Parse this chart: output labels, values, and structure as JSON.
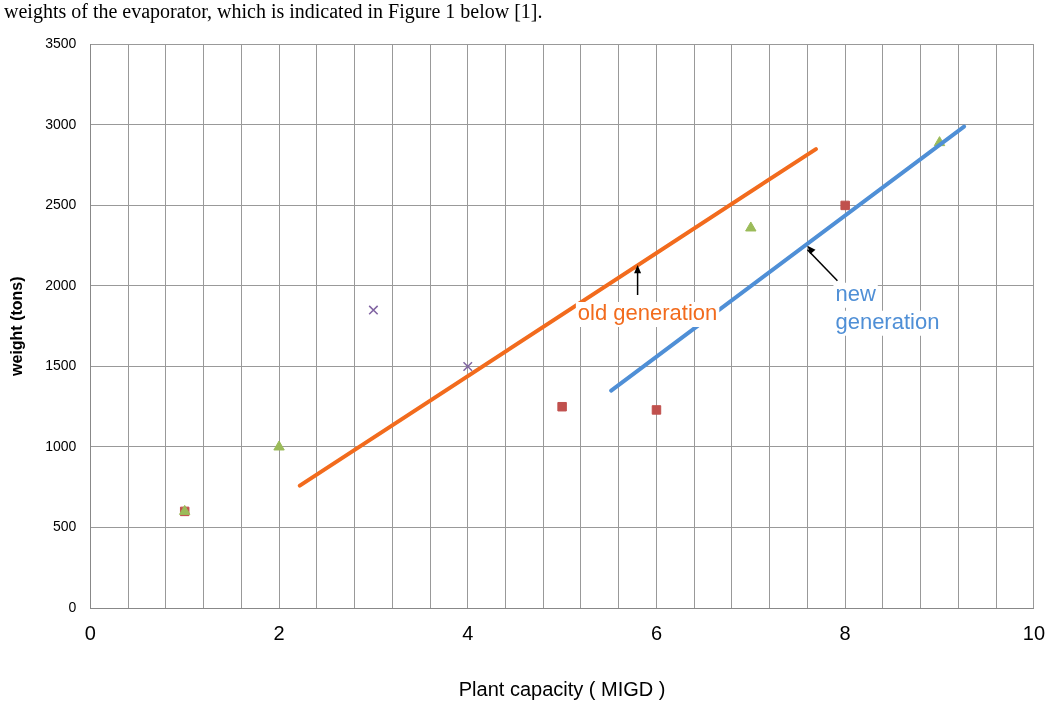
{
  "chart_data": {
    "type": "scatter",
    "xlabel": "Plant capacity ( MIGD )",
    "ylabel": "weight (tons)",
    "xlim": [
      0,
      10
    ],
    "ylim": [
      0,
      3500
    ],
    "xticks": [
      0,
      {
        "value": 0.4,
        "label": null
      },
      {
        "value": 0.8,
        "label": null
      },
      {
        "value": 1.2,
        "label": null
      },
      {
        "value": 1.6,
        "label": null
      },
      2,
      {
        "value": 2.4,
        "label": null
      },
      {
        "value": 2.8,
        "label": null
      },
      {
        "value": 3.2,
        "label": null
      },
      {
        "value": 3.6,
        "label": null
      },
      4,
      {
        "value": 4.4,
        "label": null
      },
      {
        "value": 4.8,
        "label": null
      },
      {
        "value": 5.2,
        "label": null
      },
      {
        "value": 5.6,
        "label": null
      },
      6,
      {
        "value": 6.4,
        "label": null
      },
      {
        "value": 6.8,
        "label": null
      },
      {
        "value": 7.2,
        "label": null
      },
      {
        "value": 7.6,
        "label": null
      },
      8,
      {
        "value": 8.4,
        "label": null
      },
      {
        "value": 8.8,
        "label": null
      },
      {
        "value": 9.2,
        "label": null
      },
      {
        "value": 9.6,
        "label": null
      },
      10
    ],
    "yticks": [
      0,
      500,
      1000,
      1500,
      2000,
      2500,
      3000,
      3500
    ],
    "grid": true,
    "legend": false,
    "series": [
      {
        "marker": "square",
        "color": "#c0504d",
        "x": [
          1,
          5,
          6,
          8
        ],
        "values": [
          600,
          1250,
          1230,
          2500
        ]
      },
      {
        "marker": "triangle",
        "color": "#9bbb59",
        "x": [
          1,
          2,
          7,
          9
        ],
        "values": [
          600,
          1000,
          2360,
          2890
        ]
      },
      {
        "marker": "cross",
        "color": "#8064a2",
        "x": [
          3,
          4
        ],
        "values": [
          1850,
          1500
        ]
      },
      {
        "type": "line",
        "marker": "none",
        "color": "#f26b1d",
        "x": [
          2.22,
          7.69
        ],
        "values": [
          760,
          2850
        ]
      },
      {
        "type": "line",
        "marker": "none",
        "color": "#4f8fd6",
        "x": [
          5.52,
          9.26
        ],
        "values": [
          1350,
          2990
        ]
      }
    ],
    "annotations": [
      "weights of the evaporator, which is indicated in Figure 1 below [1].",
      {
        "text": "old generation",
        "x": 5.8,
        "y": 2130
      },
      {
        "text": "new generation",
        "x": 7.6,
        "y": 2250
      }
    ]
  }
}
